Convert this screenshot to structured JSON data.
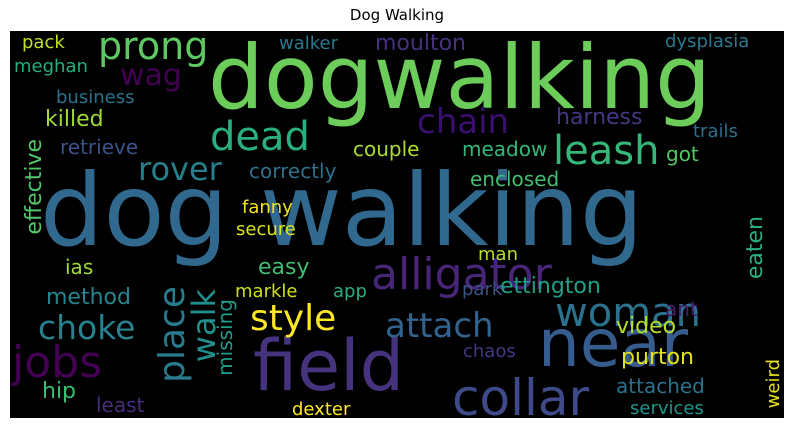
{
  "title": "Dog Walking",
  "words": [
    {
      "text": "dog walking",
      "color": "#31688e"
    },
    {
      "text": "dogwalking",
      "color": "#6ccd5a"
    },
    {
      "text": "field",
      "color": "#46337e"
    },
    {
      "text": "near",
      "color": "#365c8d"
    },
    {
      "text": "collar",
      "color": "#3e4a89"
    },
    {
      "text": "dead",
      "color": "#2ab07f"
    },
    {
      "text": "leash",
      "color": "#35b779"
    },
    {
      "text": "prong",
      "color": "#5ec962"
    },
    {
      "text": "wag",
      "color": "#440154"
    },
    {
      "text": "chain",
      "color": "#3b0f70"
    },
    {
      "text": "rover",
      "color": "#277f8e"
    },
    {
      "text": "alligator",
      "color": "#482677"
    },
    {
      "text": "woman",
      "color": "#2c728e"
    },
    {
      "text": "style",
      "color": "#fde725"
    },
    {
      "text": "attach",
      "color": "#33638d"
    },
    {
      "text": "choke",
      "color": "#26828e"
    },
    {
      "text": "jobs",
      "color": "#440154"
    },
    {
      "text": "place",
      "color": "#287c8e"
    },
    {
      "text": "walk",
      "color": "#21908d"
    },
    {
      "text": "moulton",
      "color": "#46327e"
    },
    {
      "text": "harness",
      "color": "#453781"
    },
    {
      "text": "couple",
      "color": "#addc30"
    },
    {
      "text": "meadow",
      "color": "#35b779"
    },
    {
      "text": "enclosed",
      "color": "#42be71"
    },
    {
      "text": "correctly",
      "color": "#2d718e"
    },
    {
      "text": "retrieve",
      "color": "#3b528b"
    },
    {
      "text": "killed",
      "color": "#9fda3a"
    },
    {
      "text": "effective",
      "color": "#52c569"
    },
    {
      "text": "business",
      "color": "#2c728e"
    },
    {
      "text": "meghan",
      "color": "#26ad81"
    },
    {
      "text": "pack",
      "color": "#c2df23"
    },
    {
      "text": "walker",
      "color": "#2a788e"
    },
    {
      "text": "dysplasia",
      "color": "#2a788e"
    },
    {
      "text": "trails",
      "color": "#2d708e"
    },
    {
      "text": "got",
      "color": "#55c667"
    },
    {
      "text": "eaten",
      "color": "#29af7f"
    },
    {
      "text": "ettington",
      "color": "#1fa187"
    },
    {
      "text": "ant",
      "color": "#481b6d"
    },
    {
      "text": "video",
      "color": "#b5de2b"
    },
    {
      "text": "purton",
      "color": "#e5e419"
    },
    {
      "text": "weird",
      "color": "#e7e419"
    },
    {
      "text": "attached",
      "color": "#2c728e"
    },
    {
      "text": "services",
      "color": "#1f968b"
    },
    {
      "text": "method",
      "color": "#25858e"
    },
    {
      "text": "hip",
      "color": "#3dbc74"
    },
    {
      "text": "least",
      "color": "#472d7b"
    },
    {
      "text": "missing",
      "color": "#1e9c89"
    },
    {
      "text": "dexter",
      "color": "#fde725"
    },
    {
      "text": "chaos",
      "color": "#453882"
    },
    {
      "text": "markle",
      "color": "#d0e11c"
    },
    {
      "text": "app",
      "color": "#29af7f"
    },
    {
      "text": "park",
      "color": "#3a548c"
    },
    {
      "text": "man",
      "color": "#b8de29"
    },
    {
      "text": "ias",
      "color": "#a2da37"
    },
    {
      "text": "easy",
      "color": "#3fbc73"
    },
    {
      "text": "secure",
      "color": "#dde318"
    },
    {
      "text": "fanny",
      "color": "#f1e51d"
    }
  ]
}
